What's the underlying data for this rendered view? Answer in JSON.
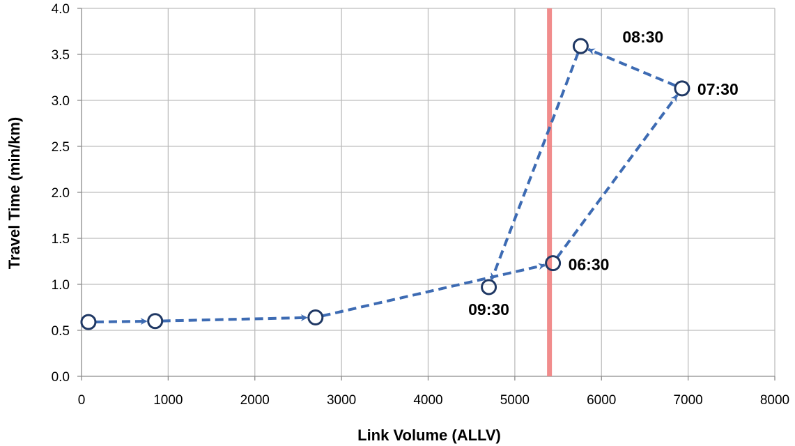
{
  "chart_data": {
    "type": "line",
    "xlabel": "Link Volume (ALLV)",
    "ylabel": "Travel Time (min/km)",
    "xlim": [
      0,
      8000
    ],
    "ylim": [
      0.0,
      4.0
    ],
    "x_ticks": [
      "0",
      "1000",
      "2000",
      "3000",
      "4000",
      "5000",
      "6000",
      "7000",
      "8000"
    ],
    "y_ticks": [
      "0.0",
      "0.5",
      "1.0",
      "1.5",
      "2.0",
      "2.5",
      "3.0",
      "3.5",
      "4.0"
    ],
    "grid": true,
    "series": [
      {
        "color": "#3d6bb3",
        "line_style": "dashed-with-arrows",
        "marker": "open-circle",
        "marker_color": "#1f3864",
        "points": [
          {
            "x": 80,
            "y": 0.59
          },
          {
            "x": 850,
            "y": 0.6
          },
          {
            "x": 2700,
            "y": 0.64
          },
          {
            "x": 5440,
            "y": 1.23
          },
          {
            "x": 6930,
            "y": 3.13
          },
          {
            "x": 5760,
            "y": 3.59
          },
          {
            "x": 4700,
            "y": 0.97
          }
        ]
      }
    ],
    "annotations": [
      {
        "text": "06:30",
        "x": 5440,
        "y": 1.23
      },
      {
        "text": "07:30",
        "x": 6930,
        "y": 3.13
      },
      {
        "text": "08:30",
        "x": 5760,
        "y": 3.59
      },
      {
        "text": "09:30",
        "x": 4700,
        "y": 0.97
      }
    ],
    "reference_line": {
      "axis": "x",
      "value": 5400,
      "color": "#f08080"
    }
  }
}
